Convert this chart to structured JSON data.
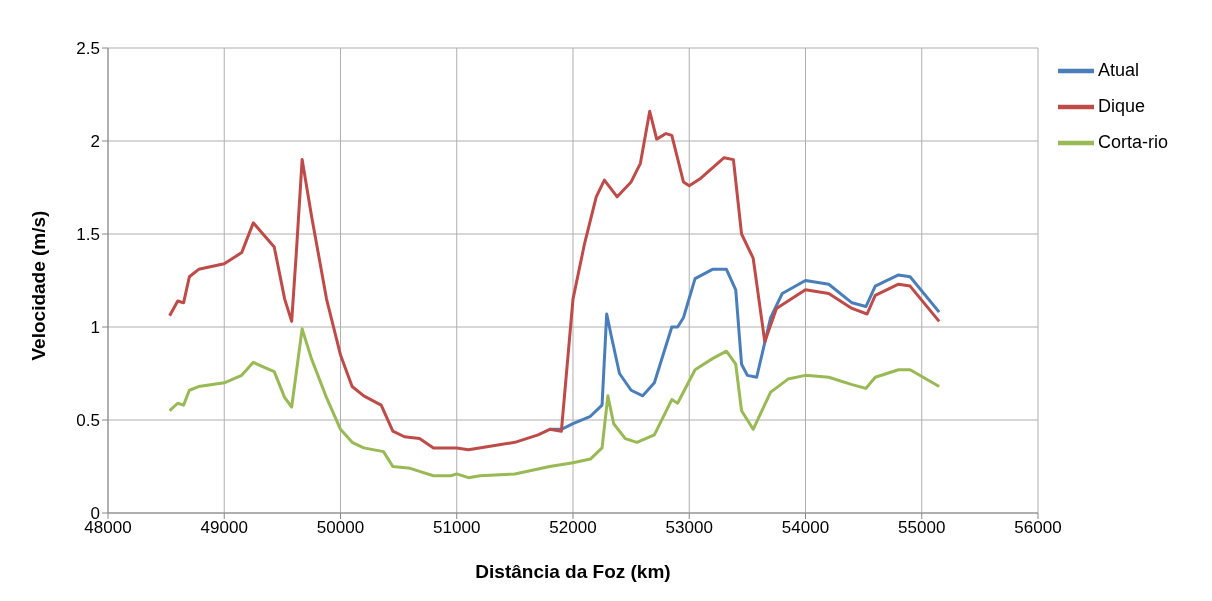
{
  "chart_data": {
    "type": "line",
    "xlabel": "Distância da Foz (km)",
    "ylabel": "Velocidade (m/s)",
    "xlim": [
      48000,
      56000
    ],
    "xticks": [
      48000,
      49000,
      50000,
      51000,
      52000,
      53000,
      54000,
      55000,
      56000
    ],
    "ylim": [
      0,
      2.5
    ],
    "yticks": [
      0,
      0.5,
      1,
      1.5,
      2,
      2.5
    ],
    "grid": true,
    "legend": "top right",
    "marker": "none",
    "line_style": "solid",
    "series": [
      {
        "name": "Atual",
        "color": "#4a7ebb",
        "x": [
          51800,
          51900,
          52000,
          52150,
          52250,
          52290,
          52330,
          52400,
          52500,
          52600,
          52700,
          52850,
          52900,
          52950,
          53050,
          53200,
          53320,
          53400,
          53450,
          53500,
          53580,
          53700,
          53800,
          54000,
          54200,
          54400,
          54520,
          54600,
          54800,
          54900,
          55150
        ],
        "values": [
          0.45,
          0.45,
          0.48,
          0.52,
          0.58,
          1.07,
          0.95,
          0.75,
          0.66,
          0.63,
          0.7,
          1.0,
          1.0,
          1.05,
          1.26,
          1.31,
          1.31,
          1.2,
          0.8,
          0.74,
          0.73,
          1.05,
          1.18,
          1.25,
          1.23,
          1.13,
          1.11,
          1.22,
          1.28,
          1.27,
          1.08
        ]
      },
      {
        "name": "Dique",
        "color": "#be4b48",
        "x": [
          48530,
          48600,
          48650,
          48700,
          48780,
          49000,
          49150,
          49250,
          49320,
          49430,
          49520,
          49580,
          49620,
          49670,
          49750,
          49880,
          50000,
          50100,
          50200,
          50350,
          50450,
          50550,
          50680,
          50800,
          51000,
          51100,
          51300,
          51500,
          51700,
          51800,
          51900,
          52000,
          52100,
          52200,
          52270,
          52380,
          52500,
          52580,
          52660,
          52720,
          52800,
          52850,
          52950,
          53000,
          53100,
          53300,
          53380,
          53450,
          53550,
          53650,
          53750,
          54000,
          54200,
          54400,
          54530,
          54600,
          54800,
          54900,
          55150
        ],
        "values": [
          1.06,
          1.14,
          1.13,
          1.27,
          1.31,
          1.34,
          1.4,
          1.56,
          1.51,
          1.43,
          1.15,
          1.03,
          1.4,
          1.9,
          1.6,
          1.15,
          0.85,
          0.68,
          0.63,
          0.58,
          0.44,
          0.41,
          0.4,
          0.35,
          0.35,
          0.34,
          0.36,
          0.38,
          0.42,
          0.45,
          0.44,
          1.15,
          1.45,
          1.7,
          1.79,
          1.7,
          1.78,
          1.88,
          2.16,
          2.01,
          2.04,
          2.03,
          1.78,
          1.76,
          1.8,
          1.91,
          1.9,
          1.5,
          1.37,
          0.92,
          1.1,
          1.2,
          1.18,
          1.1,
          1.07,
          1.17,
          1.23,
          1.22,
          1.03
        ]
      },
      {
        "name": "Corta-rio",
        "color": "#98b954",
        "x": [
          48530,
          48600,
          48650,
          48700,
          48780,
          49000,
          49150,
          49250,
          49320,
          49430,
          49520,
          49580,
          49670,
          49750,
          49880,
          50000,
          50100,
          50200,
          50370,
          50450,
          50600,
          50700,
          50800,
          50950,
          51000,
          51100,
          51200,
          51500,
          51800,
          52000,
          52150,
          52250,
          52300,
          52350,
          52450,
          52550,
          52700,
          52850,
          52900,
          53050,
          53200,
          53320,
          53400,
          53450,
          53550,
          53700,
          53850,
          54000,
          54200,
          54400,
          54520,
          54600,
          54800,
          54900,
          55150
        ],
        "values": [
          0.55,
          0.59,
          0.58,
          0.66,
          0.68,
          0.7,
          0.74,
          0.81,
          0.79,
          0.76,
          0.62,
          0.57,
          0.99,
          0.83,
          0.62,
          0.45,
          0.38,
          0.35,
          0.33,
          0.25,
          0.24,
          0.22,
          0.2,
          0.2,
          0.21,
          0.19,
          0.2,
          0.21,
          0.25,
          0.27,
          0.29,
          0.35,
          0.63,
          0.48,
          0.4,
          0.38,
          0.42,
          0.61,
          0.59,
          0.77,
          0.83,
          0.87,
          0.8,
          0.55,
          0.45,
          0.65,
          0.72,
          0.74,
          0.73,
          0.69,
          0.67,
          0.73,
          0.77,
          0.77,
          0.68
        ]
      }
    ]
  }
}
